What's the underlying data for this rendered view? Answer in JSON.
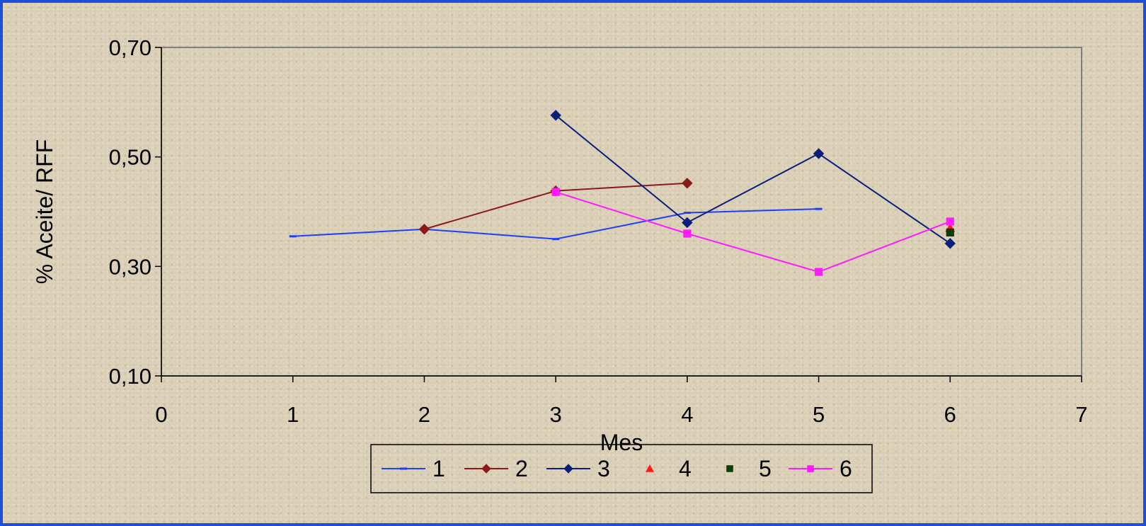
{
  "chart_data": {
    "type": "line",
    "title": "",
    "xlabel": "Mes",
    "ylabel": "% Aceite/ RFF",
    "xlim": [
      0,
      7
    ],
    "ylim": [
      0.1,
      0.7
    ],
    "x_ticks": [
      "0",
      "1",
      "2",
      "3",
      "4",
      "5",
      "6",
      "7"
    ],
    "y_ticks": [
      {
        "value": 0.1,
        "label": "0,10"
      },
      {
        "value": 0.3,
        "label": "0,30"
      },
      {
        "value": 0.5,
        "label": "0,50"
      },
      {
        "value": 0.7,
        "label": "0,70"
      }
    ],
    "grid": false,
    "legend": "bottom",
    "series": [
      {
        "name": "1",
        "color": "#1f3fff",
        "marker": "dash",
        "line": true,
        "points": [
          [
            1,
            0.355
          ],
          [
            2,
            0.368
          ],
          [
            3,
            0.35
          ],
          [
            4,
            0.398
          ],
          [
            5,
            0.405
          ]
        ]
      },
      {
        "name": "2",
        "color": "#8b1a1a",
        "marker": "diamond",
        "line": true,
        "points": [
          [
            2,
            0.368
          ],
          [
            3,
            0.438
          ],
          [
            4,
            0.452
          ]
        ]
      },
      {
        "name": "3",
        "color": "#0a1f7a",
        "marker": "diamond",
        "line": true,
        "points": [
          [
            3,
            0.576
          ],
          [
            4,
            0.38
          ],
          [
            5,
            0.506
          ],
          [
            6,
            0.342
          ]
        ]
      },
      {
        "name": "4",
        "color": "#ff1a1a",
        "marker": "triangle",
        "line": false,
        "points": [
          [
            6,
            0.37
          ]
        ]
      },
      {
        "name": "5",
        "color": "#0b3d0b",
        "marker": "square",
        "line": false,
        "points": [
          [
            6,
            0.362
          ]
        ]
      },
      {
        "name": "6",
        "color": "#ff1aff",
        "marker": "square",
        "line": true,
        "points": [
          [
            3,
            0.436
          ],
          [
            4,
            0.36
          ],
          [
            5,
            0.29
          ],
          [
            6,
            0.382
          ]
        ]
      }
    ]
  }
}
